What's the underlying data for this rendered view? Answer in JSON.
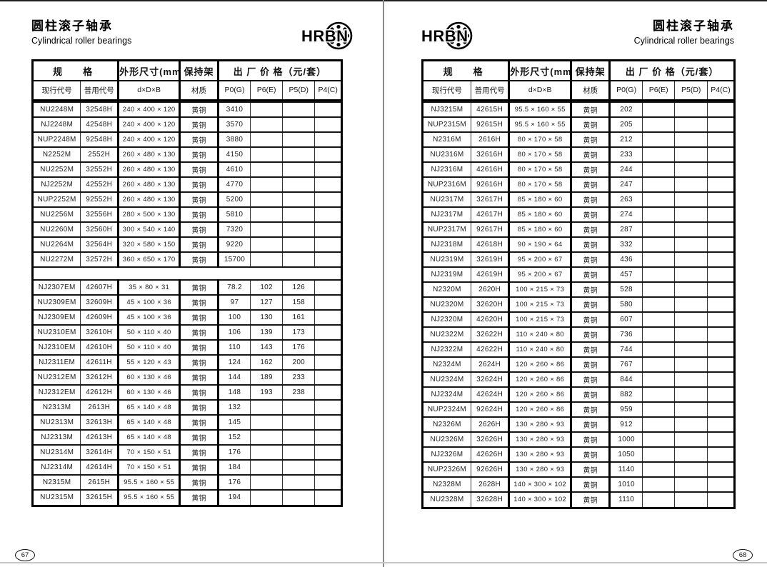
{
  "logo": {
    "text": "HRBN"
  },
  "title_cn": "圆柱滚子轴承",
  "title_en": "Cylindrical roller bearings",
  "headers": {
    "spec": "规　格",
    "dims": "外形尺寸(mm)",
    "cage": "保持架",
    "price": "出 厂 价 格（元/套）",
    "cols": [
      "现行代号",
      "普用代号",
      "d×D×B",
      "材质",
      "P0(G)",
      "P6(E)",
      "P5(D)",
      "P4(C)"
    ]
  },
  "pages": [
    {
      "number": "67",
      "blocks": [
        [
          [
            "NU2248M",
            "32548H",
            "240 × 400 × 120",
            "黄铜",
            "3410",
            "",
            "",
            ""
          ],
          [
            "NJ2248M",
            "42548H",
            "240 × 400 × 120",
            "黄铜",
            "3570",
            "",
            "",
            ""
          ],
          [
            "NUP2248M",
            "92548H",
            "240 × 400 × 120",
            "黄铜",
            "3880",
            "",
            "",
            ""
          ],
          [
            "N2252M",
            "2552H",
            "260 × 480 × 130",
            "黄铜",
            "4150",
            "",
            "",
            ""
          ],
          [
            "NU2252M",
            "32552H",
            "260 × 480 × 130",
            "黄铜",
            "4610",
            "",
            "",
            ""
          ],
          [
            "NJ2252M",
            "42552H",
            "260 × 480 × 130",
            "黄铜",
            "4770",
            "",
            "",
            ""
          ],
          [
            "NUP2252M",
            "92552H",
            "260 × 480 × 130",
            "黄铜",
            "5200",
            "",
            "",
            ""
          ],
          [
            "NU2256M",
            "32556H",
            "280 × 500 × 130",
            "黄铜",
            "5810",
            "",
            "",
            ""
          ],
          [
            "NU2260M",
            "32560H",
            "300 × 540 × 140",
            "黄铜",
            "7320",
            "",
            "",
            ""
          ],
          [
            "NU2264M",
            "32564H",
            "320 × 580 × 150",
            "黄铜",
            "9220",
            "",
            "",
            ""
          ],
          [
            "NU2272M",
            "32572H",
            "360 × 650 × 170",
            "黄铜",
            "15700",
            "",
            "",
            ""
          ]
        ],
        [
          [
            "NJ2307EM",
            "42607H",
            "35 × 80 × 31",
            "黄铜",
            "78.2",
            "102",
            "126",
            ""
          ],
          [
            "NU2309EM",
            "32609H",
            "45 × 100 × 36",
            "黄铜",
            "97",
            "127",
            "158",
            ""
          ],
          [
            "NJ2309EM",
            "42609H",
            "45 × 100 × 36",
            "黄铜",
            "100",
            "130",
            "161",
            ""
          ],
          [
            "NU2310EM",
            "32610H",
            "50 × 110 × 40",
            "黄铜",
            "106",
            "139",
            "173",
            ""
          ],
          [
            "NJ2310EM",
            "42610H",
            "50 × 110 × 40",
            "黄铜",
            "110",
            "143",
            "176",
            ""
          ],
          [
            "NJ2311EM",
            "42611H",
            "55 × 120 × 43",
            "黄铜",
            "124",
            "162",
            "200",
            ""
          ],
          [
            "NU2312EM",
            "32612H",
            "60 × 130 × 46",
            "黄铜",
            "144",
            "189",
            "233",
            ""
          ],
          [
            "NJ2312EM",
            "42612H",
            "60 × 130 × 46",
            "黄铜",
            "148",
            "193",
            "238",
            ""
          ],
          [
            "N2313M",
            "2613H",
            "65 × 140 × 48",
            "黄铜",
            "132",
            "",
            "",
            ""
          ],
          [
            "NU2313M",
            "32613H",
            "65 × 140 × 48",
            "黄铜",
            "145",
            "",
            "",
            ""
          ],
          [
            "NJ2313M",
            "42613H",
            "65 × 140 × 48",
            "黄铜",
            "152",
            "",
            "",
            ""
          ],
          [
            "NU2314M",
            "32614H",
            "70 × 150 × 51",
            "黄铜",
            "176",
            "",
            "",
            ""
          ],
          [
            "NJ2314M",
            "42614H",
            "70 × 150 × 51",
            "黄铜",
            "184",
            "",
            "",
            ""
          ],
          [
            "N2315M",
            "2615H",
            "95.5 × 160 × 55",
            "黄铜",
            "176",
            "",
            "",
            ""
          ],
          [
            "NU2315M",
            "32615H",
            "95.5 × 160 × 55",
            "黄铜",
            "194",
            "",
            "",
            ""
          ]
        ]
      ]
    },
    {
      "number": "68",
      "blocks": [
        [
          [
            "NJ3215M",
            "42615H",
            "95.5 × 160 × 55",
            "黄铜",
            "202",
            "",
            "",
            ""
          ],
          [
            "NUP2315M",
            "92615H",
            "95.5 × 160 × 55",
            "黄铜",
            "205",
            "",
            "",
            ""
          ],
          [
            "N2316M",
            "2616H",
            "80 × 170 × 58",
            "黄铜",
            "212",
            "",
            "",
            ""
          ],
          [
            "NU2316M",
            "32616H",
            "80 × 170 × 58",
            "黄铜",
            "233",
            "",
            "",
            ""
          ],
          [
            "NJ2316M",
            "42616H",
            "80 × 170 × 58",
            "黄铜",
            "244",
            "",
            "",
            ""
          ],
          [
            "NUP2316M",
            "92616H",
            "80 × 170 × 58",
            "黄铜",
            "247",
            "",
            "",
            ""
          ],
          [
            "NU2317M",
            "32617H",
            "85 × 180 × 60",
            "黄铜",
            "263",
            "",
            "",
            ""
          ],
          [
            "NJ2317M",
            "42617H",
            "85 × 180 × 60",
            "黄铜",
            "274",
            "",
            "",
            ""
          ],
          [
            "NUP2317M",
            "92617H",
            "85 × 180 × 60",
            "黄铜",
            "287",
            "",
            "",
            ""
          ],
          [
            "NJ2318M",
            "42618H",
            "90 × 190 × 64",
            "黄铜",
            "332",
            "",
            "",
            ""
          ],
          [
            "NU2319M",
            "32619H",
            "95 × 200 × 67",
            "黄铜",
            "436",
            "",
            "",
            ""
          ],
          [
            "NJ2319M",
            "42619H",
            "95 × 200 × 67",
            "黄铜",
            "457",
            "",
            "",
            ""
          ],
          [
            "N2320M",
            "2620H",
            "100 × 215 × 73",
            "黄铜",
            "528",
            "",
            "",
            ""
          ],
          [
            "NU2320M",
            "32620H",
            "100 × 215 × 73",
            "黄铜",
            "580",
            "",
            "",
            ""
          ],
          [
            "NJ2320M",
            "42620H",
            "100 × 215 × 73",
            "黄铜",
            "607",
            "",
            "",
            ""
          ],
          [
            "NU2322M",
            "32622H",
            "110 × 240 × 80",
            "黄铜",
            "736",
            "",
            "",
            ""
          ],
          [
            "NJ2322M",
            "42622H",
            "110 × 240 × 80",
            "黄铜",
            "744",
            "",
            "",
            ""
          ],
          [
            "N2324M",
            "2624H",
            "120 × 260 × 86",
            "黄铜",
            "767",
            "",
            "",
            ""
          ],
          [
            "NU2324M",
            "32624H",
            "120 × 260 × 86",
            "黄铜",
            "844",
            "",
            "",
            ""
          ],
          [
            "NJ2324M",
            "42624H",
            "120 × 260 × 86",
            "黄铜",
            "882",
            "",
            "",
            ""
          ],
          [
            "NUP2324M",
            "92624H",
            "120 × 260 × 86",
            "黄铜",
            "959",
            "",
            "",
            ""
          ],
          [
            "N2326M",
            "2626H",
            "130 × 280 × 93",
            "黄铜",
            "912",
            "",
            "",
            ""
          ],
          [
            "NU2326M",
            "32626H",
            "130 × 280 × 93",
            "黄铜",
            "1000",
            "",
            "",
            ""
          ],
          [
            "NJ2326M",
            "42626H",
            "130 × 280 × 93",
            "黄铜",
            "1050",
            "",
            "",
            ""
          ],
          [
            "NUP2326M",
            "92626H",
            "130 × 280 × 93",
            "黄铜",
            "1140",
            "",
            "",
            ""
          ],
          [
            "N2328M",
            "2628H",
            "140 × 300 × 102",
            "黄铜",
            "1010",
            "",
            "",
            ""
          ],
          [
            "NU2328M",
            "32628H",
            "140 × 300 × 102",
            "黄铜",
            "1110",
            "",
            "",
            ""
          ]
        ]
      ]
    }
  ]
}
